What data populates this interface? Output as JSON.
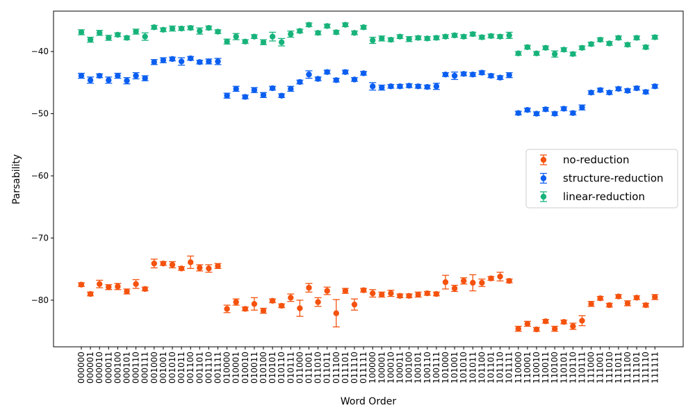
{
  "chart_data": {
    "type": "scatter",
    "xlabel": "Word Order",
    "ylabel": "Parsability",
    "ylim": [
      -87.5,
      -33.5
    ],
    "yticks": [
      -80,
      -70,
      -60,
      -50,
      -40
    ],
    "grid": false,
    "legend_position": "center-right",
    "categories": [
      "000000",
      "000001",
      "000010",
      "000011",
      "000100",
      "000101",
      "000110",
      "000111",
      "001000",
      "001001",
      "001010",
      "001011",
      "001100",
      "001101",
      "001110",
      "001111",
      "010000",
      "010001",
      "010010",
      "010011",
      "010100",
      "010101",
      "010110",
      "010111",
      "011000",
      "011001",
      "011010",
      "011011",
      "011100",
      "011101",
      "011110",
      "011111",
      "100000",
      "100001",
      "100010",
      "100011",
      "100100",
      "100101",
      "100110",
      "100111",
      "101000",
      "101001",
      "101010",
      "101011",
      "101100",
      "101101",
      "101110",
      "101111",
      "110000",
      "110001",
      "110010",
      "110011",
      "110100",
      "110101",
      "110110",
      "110111",
      "111000",
      "111001",
      "111010",
      "111011",
      "111100",
      "111101",
      "111110",
      "111111"
    ],
    "series": [
      {
        "name": "no-reduction",
        "color": "#f4520e",
        "values": [
          -77.5,
          -79.0,
          -77.4,
          -77.9,
          -77.8,
          -78.6,
          -77.4,
          -78.2,
          -74.1,
          -74.1,
          -74.3,
          -74.9,
          -73.9,
          -74.8,
          -74.9,
          -74.5,
          -81.4,
          -80.3,
          -81.4,
          -80.6,
          -81.7,
          -80.1,
          -80.9,
          -79.6,
          -81.3,
          -78.0,
          -80.3,
          -78.5,
          -82.1,
          -78.5,
          -80.7,
          -78.4,
          -78.9,
          -79.1,
          -78.9,
          -79.3,
          -79.3,
          -79.1,
          -78.9,
          -79.0,
          -77.1,
          -78.1,
          -76.9,
          -77.2,
          -77.2,
          -76.5,
          -76.2,
          -76.9,
          -84.6,
          -83.8,
          -84.7,
          -83.4,
          -84.6,
          -83.5,
          -84.2,
          -83.3,
          -80.6,
          -79.7,
          -80.8,
          -79.4,
          -80.5,
          -79.6,
          -80.8,
          -79.5
        ],
        "errors": [
          0.3,
          0.3,
          0.6,
          0.4,
          0.5,
          0.4,
          0.7,
          0.3,
          0.7,
          0.3,
          0.5,
          0.3,
          1.0,
          0.5,
          0.6,
          0.4,
          0.6,
          0.5,
          0.3,
          1.0,
          0.4,
          0.3,
          0.3,
          0.6,
          1.3,
          0.7,
          0.7,
          0.6,
          2.2,
          0.4,
          0.9,
          0.3,
          0.6,
          0.4,
          0.5,
          0.3,
          0.3,
          0.4,
          0.3,
          0.3,
          1.1,
          0.5,
          0.5,
          1.3,
          0.6,
          0.3,
          0.7,
          0.3,
          0.4,
          0.4,
          0.3,
          0.3,
          0.4,
          0.3,
          0.5,
          0.8,
          0.4,
          0.3,
          0.3,
          0.3,
          0.4,
          0.3,
          0.3,
          0.4
        ]
      },
      {
        "name": "structure-reduction",
        "color": "#0a5ef0",
        "values": [
          -43.9,
          -44.6,
          -43.9,
          -44.6,
          -43.9,
          -44.7,
          -43.9,
          -44.3,
          -41.7,
          -41.4,
          -41.2,
          -41.6,
          -41.1,
          -41.7,
          -41.6,
          -41.6,
          -47.1,
          -46.0,
          -47.3,
          -46.2,
          -47.0,
          -45.9,
          -47.1,
          -46.0,
          -44.9,
          -43.7,
          -44.4,
          -43.3,
          -44.6,
          -43.3,
          -44.5,
          -43.5,
          -45.6,
          -45.8,
          -45.6,
          -45.6,
          -45.5,
          -45.6,
          -45.7,
          -45.6,
          -43.7,
          -43.9,
          -43.6,
          -43.7,
          -43.4,
          -43.9,
          -44.2,
          -43.8,
          -49.9,
          -49.4,
          -50.0,
          -49.3,
          -50.0,
          -49.2,
          -49.9,
          -49.0,
          -46.6,
          -46.2,
          -46.6,
          -46.0,
          -46.3,
          -45.9,
          -46.5,
          -45.6
        ],
        "errors": [
          0.4,
          0.5,
          0.3,
          0.5,
          0.4,
          0.5,
          0.5,
          0.4,
          0.4,
          0.4,
          0.3,
          0.6,
          0.3,
          0.3,
          0.4,
          0.5,
          0.4,
          0.4,
          0.3,
          0.4,
          0.4,
          0.3,
          0.3,
          0.4,
          0.3,
          0.6,
          0.3,
          0.3,
          0.3,
          0.3,
          0.3,
          0.3,
          0.6,
          0.4,
          0.3,
          0.3,
          0.3,
          0.3,
          0.3,
          0.5,
          0.3,
          0.6,
          0.3,
          0.3,
          0.3,
          0.3,
          0.3,
          0.4,
          0.3,
          0.3,
          0.3,
          0.3,
          0.3,
          0.3,
          0.3,
          0.4,
          0.3,
          0.3,
          0.3,
          0.3,
          0.3,
          0.3,
          0.3,
          0.3
        ]
      },
      {
        "name": "linear-reduction",
        "color": "#17b37a",
        "values": [
          -36.9,
          -38.1,
          -37.0,
          -37.8,
          -37.3,
          -37.8,
          -36.8,
          -37.6,
          -36.1,
          -36.5,
          -36.3,
          -36.3,
          -36.2,
          -36.7,
          -36.2,
          -36.8,
          -38.4,
          -37.6,
          -38.4,
          -37.6,
          -38.5,
          -37.6,
          -38.5,
          -37.2,
          -36.7,
          -35.7,
          -37.0,
          -35.9,
          -36.9,
          -35.7,
          -37.0,
          -36.1,
          -38.2,
          -37.9,
          -38.1,
          -37.6,
          -38.0,
          -37.8,
          -37.9,
          -37.8,
          -37.6,
          -37.4,
          -37.6,
          -37.2,
          -37.7,
          -37.5,
          -37.6,
          -37.4,
          -40.3,
          -39.3,
          -40.3,
          -39.4,
          -40.4,
          -39.7,
          -40.4,
          -39.4,
          -38.8,
          -38.1,
          -38.7,
          -37.8,
          -38.9,
          -37.8,
          -39.3,
          -37.7
        ],
        "errors": [
          0.4,
          0.4,
          0.4,
          0.4,
          0.3,
          0.3,
          0.4,
          0.6,
          0.3,
          0.3,
          0.4,
          0.3,
          0.3,
          0.5,
          0.3,
          0.3,
          0.4,
          0.5,
          0.3,
          0.3,
          0.4,
          0.7,
          0.6,
          0.5,
          0.3,
          0.3,
          0.3,
          0.3,
          0.3,
          0.3,
          0.3,
          0.3,
          0.5,
          0.4,
          0.3,
          0.3,
          0.4,
          0.3,
          0.3,
          0.3,
          0.3,
          0.3,
          0.3,
          0.3,
          0.3,
          0.3,
          0.3,
          0.5,
          0.3,
          0.3,
          0.3,
          0.3,
          0.5,
          0.3,
          0.3,
          0.3,
          0.3,
          0.3,
          0.3,
          0.3,
          0.3,
          0.3,
          0.3,
          0.3
        ]
      }
    ]
  }
}
